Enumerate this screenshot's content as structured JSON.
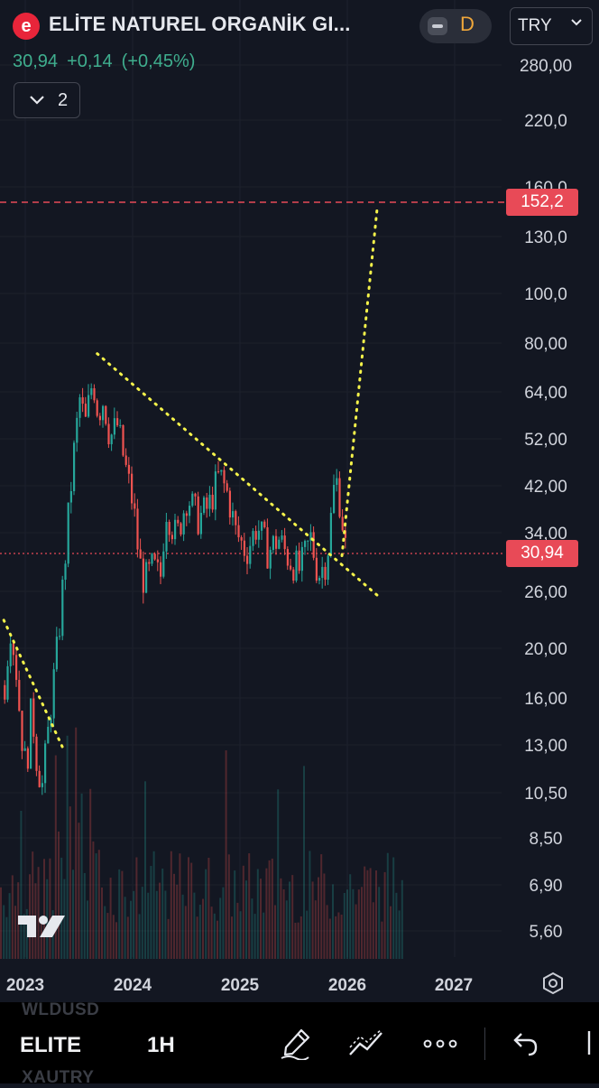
{
  "header": {
    "logo_letter": "e",
    "title": "ELİTE NATUREL ORGANİK GI...",
    "price": "30,94",
    "change": "+0,14",
    "change_pct": "(+0,45%)",
    "indicators_count": "2",
    "interval": "D",
    "currency": "TRY"
  },
  "colors": {
    "background": "#131722",
    "up": "#26a69a",
    "down": "#ef5350",
    "trendline": "#f5f34a",
    "target_line": "#e84a57",
    "price_tag": "#e84a57"
  },
  "chart_data": {
    "type": "candlestick",
    "price_scale": "log",
    "y_ticks": [
      "280,00",
      "220,0",
      "160,0",
      "130,0",
      "100,0",
      "80,00",
      "64,00",
      "52,00",
      "42,00",
      "34,00",
      "26,00",
      "20,00",
      "16,00",
      "13,00",
      "10,50",
      "8,50",
      "6,90",
      "5,60"
    ],
    "x_ticks": [
      "2023",
      "2024",
      "2025",
      "2026",
      "2027"
    ],
    "last_price_label": "30,94",
    "target_label": "152,2",
    "target_price": 152.2,
    "last_price": 30.94,
    "price_path": [
      [
        2022.8,
        17.0
      ],
      [
        2022.85,
        22.5
      ],
      [
        2022.9,
        19.0
      ],
      [
        2022.95,
        14.0
      ],
      [
        2023.0,
        11.5
      ],
      [
        2023.05,
        15.5
      ],
      [
        2023.1,
        12.0
      ],
      [
        2023.15,
        10.8
      ],
      [
        2023.2,
        13.5
      ],
      [
        2023.25,
        17.0
      ],
      [
        2023.3,
        21.0
      ],
      [
        2023.35,
        28.0
      ],
      [
        2023.4,
        38.0
      ],
      [
        2023.45,
        50.0
      ],
      [
        2023.5,
        62.0
      ],
      [
        2023.55,
        55.0
      ],
      [
        2023.62,
        68.0
      ],
      [
        2023.67,
        58.0
      ],
      [
        2023.72,
        62.0
      ],
      [
        2023.78,
        52.0
      ],
      [
        2023.85,
        55.0
      ],
      [
        2023.92,
        46.0
      ],
      [
        2024.0,
        38.0
      ],
      [
        2024.05,
        30.0
      ],
      [
        2024.1,
        27.0
      ],
      [
        2024.18,
        29.0
      ],
      [
        2024.25,
        27.5
      ],
      [
        2024.3,
        38.0
      ],
      [
        2024.4,
        33.0
      ],
      [
        2024.5,
        40.0
      ],
      [
        2024.6,
        36.0
      ],
      [
        2024.7,
        38.0
      ],
      [
        2024.8,
        44.0
      ],
      [
        2024.88,
        40.0
      ],
      [
        2024.95,
        34.0
      ],
      [
        2025.05,
        31.0
      ],
      [
        2025.15,
        35.0
      ],
      [
        2025.25,
        31.0
      ],
      [
        2025.35,
        33.0
      ],
      [
        2025.45,
        30.0
      ],
      [
        2025.55,
        28.5
      ],
      [
        2025.65,
        33.0
      ],
      [
        2025.72,
        28.0
      ],
      [
        2025.8,
        30.0
      ],
      [
        2025.88,
        44.0
      ],
      [
        2025.93,
        38.0
      ],
      [
        2025.98,
        30.94
      ]
    ],
    "trendlines": [
      {
        "from": [
          2022.8,
          22.8
        ],
        "to": [
          2023.35,
          12.8
        ]
      },
      {
        "from": [
          2023.67,
          76.0
        ],
        "to": [
          2026.28,
          25.5
        ]
      },
      {
        "from": [
          2025.95,
          30.5
        ],
        "to": [
          2026.28,
          148.0
        ]
      }
    ]
  },
  "bottom_bar": {
    "ghost_ticker_top": "WLDUSD",
    "ghost_ticker_bottom": "XAUTRY",
    "symbol": "ELITE",
    "timeframe": "1H"
  }
}
